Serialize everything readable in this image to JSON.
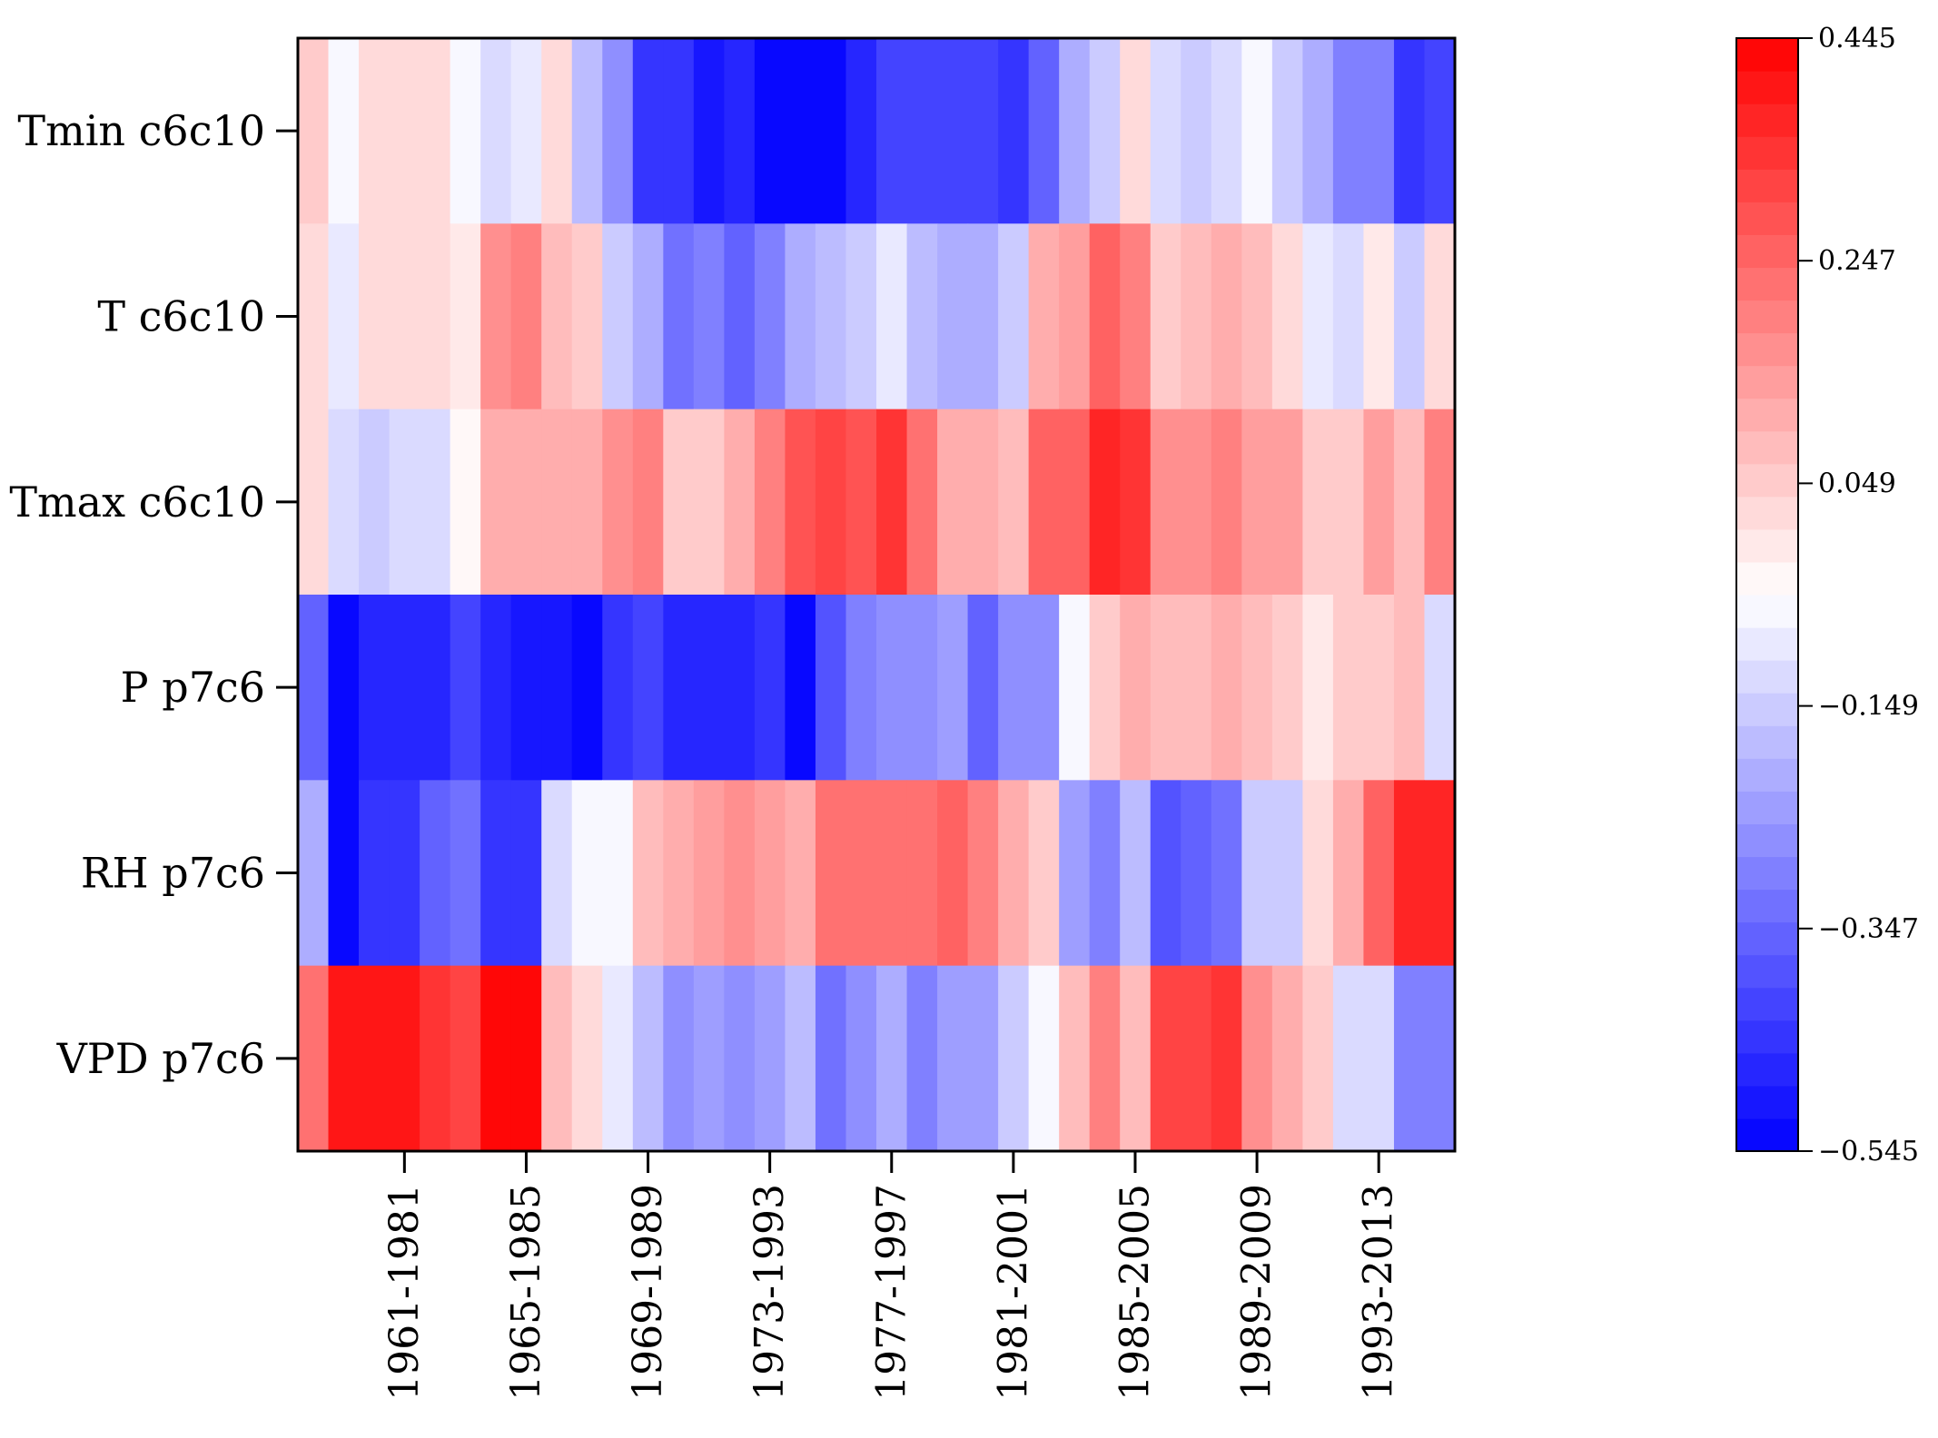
{
  "chart_data": {
    "type": "heatmap",
    "title": "",
    "xlabel": "",
    "ylabel": "",
    "rows": [
      "Tmin c6c10",
      "T c6c10",
      "Tmax c6c10",
      "P p7c6",
      "RH p7c6",
      "VPD p7c6"
    ],
    "x_tick_labels": [
      "1961-1981",
      "1965-1985",
      "1969-1989",
      "1973-1993",
      "1977-1997",
      "1981-2001",
      "1985-2005",
      "1989-2009",
      "1993-2013"
    ],
    "x_tick_columns": [
      3,
      7,
      11,
      15,
      19,
      23,
      27,
      31,
      35
    ],
    "columns_count": 38,
    "colorbar": {
      "vmin": -0.545,
      "vmax": 0.445,
      "levels": 34,
      "tick_values": [
        0.445,
        0.247,
        0.049,
        -0.149,
        -0.347,
        -0.545
      ],
      "tick_labels": [
        "0.445",
        "0.247",
        "0.049",
        "−0.149",
        "−0.347",
        "−0.545"
      ]
    },
    "colormap": {
      "name": "bwr",
      "low": "#0000ff",
      "mid": "#ffffff",
      "high": "#ff0000"
    },
    "values": [
      [
        0.04,
        -0.07,
        0.03,
        0.03,
        0.03,
        -0.06,
        -0.11,
        -0.08,
        0.03,
        -0.17,
        -0.26,
        -0.45,
        -0.45,
        -0.49,
        -0.48,
        -0.52,
        -0.52,
        -0.52,
        -0.48,
        -0.42,
        -0.42,
        -0.42,
        -0.42,
        -0.45,
        -0.35,
        -0.2,
        -0.14,
        0.03,
        -0.11,
        -0.14,
        -0.11,
        -0.06,
        -0.14,
        -0.22,
        -0.3,
        -0.3,
        -0.45,
        -0.42
      ],
      [
        0.03,
        -0.08,
        0.03,
        0.03,
        0.03,
        0.0,
        0.17,
        0.21,
        0.09,
        0.06,
        -0.14,
        -0.2,
        -0.33,
        -0.3,
        -0.36,
        -0.29,
        -0.22,
        -0.19,
        -0.14,
        -0.08,
        -0.17,
        -0.2,
        -0.2,
        -0.14,
        0.1,
        0.14,
        0.26,
        0.19,
        0.05,
        0.07,
        0.11,
        0.07,
        0.03,
        -0.08,
        -0.11,
        0.0,
        -0.14,
        0.03
      ],
      [
        0.02,
        -0.11,
        -0.14,
        -0.11,
        -0.11,
        -0.05,
        0.12,
        0.12,
        0.12,
        0.12,
        0.16,
        0.19,
        0.06,
        0.06,
        0.1,
        0.21,
        0.29,
        0.32,
        0.29,
        0.34,
        0.24,
        0.1,
        0.1,
        0.07,
        0.26,
        0.26,
        0.37,
        0.33,
        0.16,
        0.16,
        0.21,
        0.13,
        0.13,
        0.06,
        0.06,
        0.13,
        0.07,
        0.2
      ],
      [
        -0.35,
        -0.55,
        -0.46,
        -0.46,
        -0.46,
        -0.42,
        -0.46,
        -0.49,
        -0.49,
        -0.52,
        -0.44,
        -0.41,
        -0.46,
        -0.46,
        -0.46,
        -0.44,
        -0.54,
        -0.38,
        -0.3,
        -0.26,
        -0.26,
        -0.25,
        -0.35,
        -0.26,
        -0.26,
        -0.06,
        0.06,
        0.1,
        0.07,
        0.09,
        0.1,
        0.08,
        0.06,
        0.0,
        0.06,
        0.04,
        0.08,
        -0.12
      ],
      [
        -0.2,
        -0.52,
        -0.45,
        -0.45,
        -0.36,
        -0.33,
        -0.45,
        -0.45,
        -0.12,
        -0.07,
        -0.07,
        0.09,
        0.12,
        0.15,
        0.17,
        0.14,
        0.12,
        0.24,
        0.24,
        0.24,
        0.24,
        0.26,
        0.19,
        0.12,
        0.06,
        -0.23,
        -0.29,
        -0.17,
        -0.39,
        -0.35,
        -0.33,
        -0.14,
        -0.14,
        0.03,
        0.11,
        0.25,
        0.37,
        0.37
      ],
      [
        0.24,
        0.41,
        0.41,
        0.41,
        0.34,
        0.32,
        0.45,
        0.45,
        0.08,
        0.03,
        -0.08,
        -0.19,
        -0.26,
        -0.24,
        -0.28,
        -0.23,
        -0.17,
        -0.32,
        -0.28,
        -0.22,
        -0.3,
        -0.25,
        -0.25,
        -0.15,
        -0.06,
        0.09,
        0.19,
        0.08,
        0.32,
        0.3,
        0.35,
        0.17,
        0.12,
        0.04,
        -0.12,
        -0.12,
        -0.3,
        -0.3
      ]
    ]
  }
}
